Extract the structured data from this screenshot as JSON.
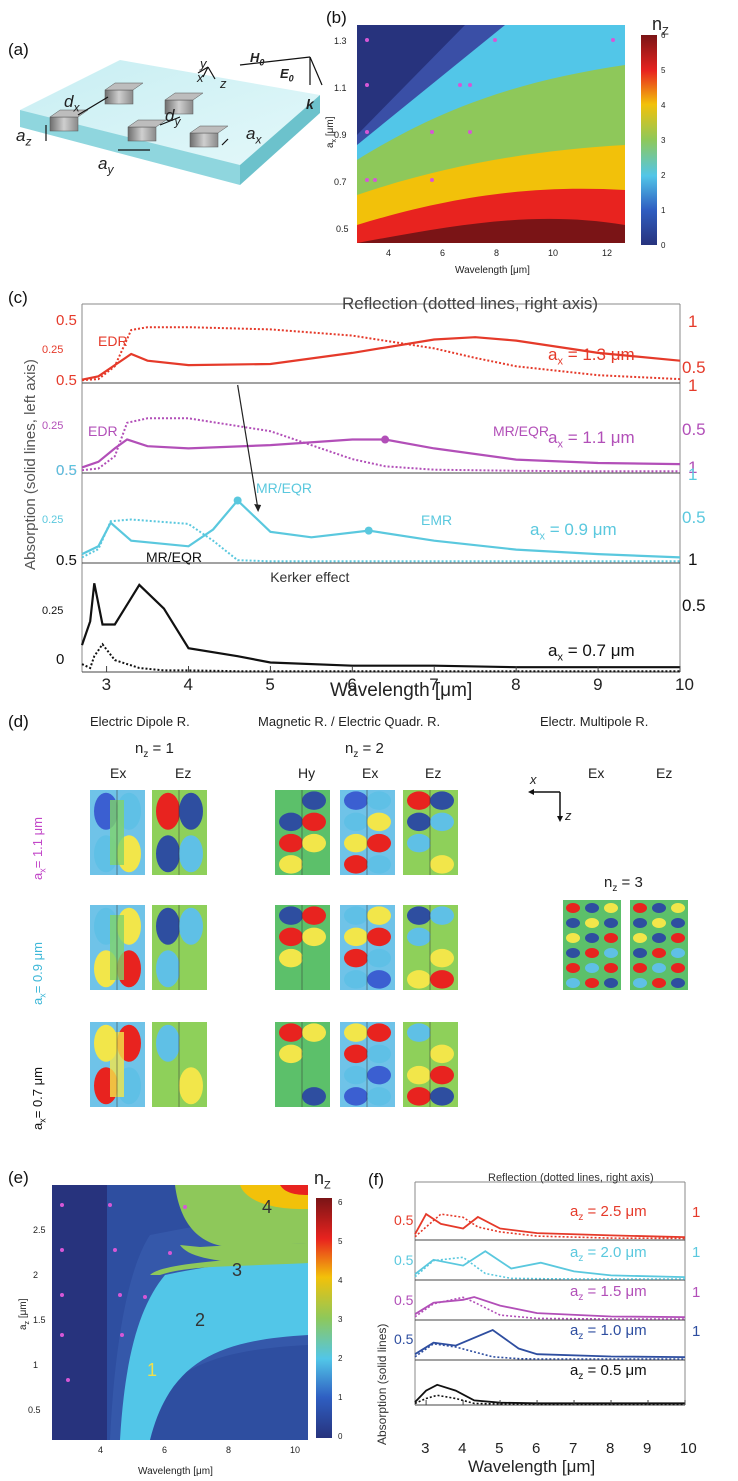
{
  "panels": {
    "a": "(a)",
    "b": "(b)",
    "c": "(c)",
    "d": "(d)",
    "e": "(e)",
    "f": "(f)"
  },
  "schematic": {
    "labels": {
      "y": "y",
      "x": "x",
      "z": "z",
      "H0": "H",
      "H0_sub": "0",
      "E0": "E",
      "E0_sub": "0",
      "k": "k",
      "dx": "d",
      "dx_sub": "x",
      "dy": "d",
      "dy_sub": "y",
      "az": "a",
      "az_sub": "z",
      "ay": "a",
      "ay_sub": "y",
      "ax": "a",
      "ax_sub": "x"
    }
  },
  "map_b": {
    "colorbar_title": "n",
    "colorbar_title_sub": "Z",
    "colorbar_ticks": [
      "0",
      "1",
      "2",
      "3",
      "4",
      "5",
      "6"
    ],
    "xlabel": "Wavelength [μm]",
    "ylabel": "a",
    "ylabel_sub": "x",
    "ylabel_unit": " [μm]",
    "xticks": [
      "4",
      "6",
      "8",
      "10",
      "12"
    ],
    "yticks": [
      "0.5",
      "0.7",
      "0.9",
      "1.1",
      "1.3"
    ],
    "colors": {
      "n0": "#27337d",
      "n1": "#3a4fa6",
      "n2": "#52c6e8",
      "n3": "#8ec85a",
      "n4": "#f2c10a",
      "n5": "#e8231f",
      "n6": "#7a1416"
    }
  },
  "chart_data": [
    {
      "type": "line",
      "panel": "c",
      "title": "Reflection (dotted lines, right axis)",
      "xlabel": "Wavelength [μm]",
      "ylabel": "Absorption (solid lines, left axis)",
      "xlim": [
        2.7,
        10
      ],
      "xticks": [
        "3",
        "4",
        "5",
        "6",
        "7",
        "8",
        "9",
        "10"
      ],
      "series": [
        {
          "name": "a_x = 1.3 μm",
          "color": "#e53a2a",
          "left_ticks": [
            "0.5",
            "0.25",
            "0.5"
          ],
          "right_ticks": [
            "1",
            "0.5",
            "1"
          ],
          "x": [
            2.7,
            2.9,
            3.1,
            3.3,
            3.5,
            4,
            5,
            6,
            7,
            7.5,
            8,
            9,
            10
          ],
          "absorption": [
            0.03,
            0.06,
            0.16,
            0.26,
            0.2,
            0.16,
            0.17,
            0.27,
            0.39,
            0.41,
            0.38,
            0.27,
            0.2
          ],
          "reflection": [
            0.05,
            0.07,
            0.3,
            0.95,
            1.0,
            1.0,
            0.96,
            0.85,
            0.62,
            0.45,
            0.3,
            0.14,
            0.07
          ],
          "labels": [
            {
              "text": "EDR",
              "x": 3.2
            }
          ]
        },
        {
          "name": "a_x = 1.1 μm",
          "color": "#b24fb8",
          "left_ticks": [
            "0.25",
            "0.5"
          ],
          "right_ticks": [
            "0.5",
            "1"
          ],
          "x": [
            2.7,
            2.9,
            3.1,
            3.25,
            3.5,
            4,
            5,
            6,
            6.4,
            7,
            8,
            9,
            10
          ],
          "absorption": [
            0.05,
            0.1,
            0.22,
            0.3,
            0.24,
            0.22,
            0.25,
            0.3,
            0.3,
            0.22,
            0.12,
            0.09,
            0.08
          ],
          "reflection": [
            0.05,
            0.08,
            0.3,
            0.9,
            0.98,
            0.98,
            0.75,
            0.25,
            0.12,
            0.06,
            0.04,
            0.03,
            0.03
          ],
          "labels": [
            {
              "text": "EDR",
              "x": 3.2
            },
            {
              "text": "MR/EQR",
              "x": 6.4
            }
          ]
        },
        {
          "name": "a_x = 0.9 μm",
          "color": "#5ac8de",
          "left_ticks": [
            "0.5",
            "0.25"
          ],
          "right_ticks": [
            "1",
            "0.5"
          ],
          "x": [
            2.7,
            2.9,
            3.05,
            3.3,
            4,
            4.3,
            4.6,
            5,
            5.5,
            6.2,
            7,
            8,
            9,
            10
          ],
          "absorption": [
            0.08,
            0.15,
            0.36,
            0.2,
            0.15,
            0.3,
            0.56,
            0.28,
            0.23,
            0.29,
            0.2,
            0.12,
            0.08,
            0.05
          ],
          "reflection": [
            0.1,
            0.25,
            0.75,
            0.78,
            0.7,
            0.4,
            0.05,
            0.03,
            0.03,
            0.03,
            0.03,
            0.03,
            0.03,
            0.03
          ],
          "labels": [
            {
              "text": "MR/EQR",
              "x": 4.6
            },
            {
              "text": "EMR",
              "x": 6.2
            },
            {
              "text": "Kerker effect",
              "x": 4.9
            }
          ]
        },
        {
          "name": "a_x = 0.7 μm",
          "color": "#111111",
          "left_ticks": [
            "0.5",
            "0.25",
            "0"
          ],
          "right_ticks": [
            "1",
            "0.5"
          ],
          "x": [
            2.7,
            2.8,
            2.85,
            2.95,
            3.1,
            3.4,
            3.7,
            4,
            4.6,
            5,
            6,
            7,
            8,
            9,
            10
          ],
          "absorption": [
            0.17,
            0.32,
            0.56,
            0.3,
            0.3,
            0.55,
            0.4,
            0.15,
            0.1,
            0.06,
            0.04,
            0.04,
            0.03,
            0.03,
            0.03
          ],
          "reflection": [
            0.1,
            0.05,
            0.2,
            0.35,
            0.15,
            0.05,
            0.02,
            0.02,
            0.01,
            0.01,
            0.01,
            0.01,
            0.01,
            0.01,
            0.01
          ],
          "labels": [
            {
              "text": "MR/EQR",
              "x": 3.5
            }
          ]
        }
      ]
    },
    {
      "type": "line",
      "panel": "f",
      "title": "Reflection (dotted lines, right axis)",
      "xlabel": "Wavelength [μm]",
      "ylabel": "Absorption (solid lines)",
      "xlim": [
        2.7,
        10
      ],
      "xticks": [
        "3",
        "4",
        "5",
        "6",
        "7",
        "8",
        "9",
        "10"
      ],
      "series": [
        {
          "name": "a_z = 2.5 μm",
          "color": "#e53a2a",
          "left_tick": "0.5",
          "right_tick": "1",
          "x": [
            2.7,
            3,
            3.4,
            4,
            4.4,
            5,
            6,
            8,
            10
          ],
          "absorption": [
            0.1,
            0.45,
            0.28,
            0.2,
            0.4,
            0.2,
            0.12,
            0.08,
            0.05
          ],
          "reflection": [
            0.1,
            0.4,
            0.8,
            0.7,
            0.4,
            0.25,
            0.12,
            0.06,
            0.05
          ]
        },
        {
          "name": "a_z = 2.0 μm",
          "color": "#5ac8de",
          "left_tick": "0.5",
          "right_tick": "1",
          "x": [
            2.7,
            3.2,
            4,
            4.6,
            5.3,
            6.1,
            7,
            8,
            10
          ],
          "absorption": [
            0.1,
            0.35,
            0.25,
            0.5,
            0.2,
            0.3,
            0.15,
            0.08,
            0.05
          ],
          "reflection": [
            0.1,
            0.6,
            0.7,
            0.2,
            0.05,
            0.04,
            0.03,
            0.03,
            0.03
          ]
        },
        {
          "name": "a_z = 1.5 μm",
          "color": "#b24fb8",
          "left_tick": "0.5",
          "right_tick": "1",
          "x": [
            2.7,
            3.2,
            4,
            4.3,
            5,
            6,
            8,
            10
          ],
          "absorption": [
            0.1,
            0.3,
            0.35,
            0.4,
            0.25,
            0.12,
            0.06,
            0.05
          ],
          "reflection": [
            0.1,
            0.5,
            0.7,
            0.55,
            0.15,
            0.05,
            0.03,
            0.03
          ]
        },
        {
          "name": "a_z = 1.0 μm",
          "color": "#2e4ea0",
          "left_tick": "0.5",
          "right_tick": "1",
          "x": [
            2.7,
            3.2,
            3.8,
            4.8,
            5.5,
            6,
            8,
            10
          ],
          "absorption": [
            0.1,
            0.3,
            0.25,
            0.52,
            0.2,
            0.1,
            0.06,
            0.05
          ],
          "reflection": [
            0.1,
            0.5,
            0.4,
            0.1,
            0.04,
            0.03,
            0.03,
            0.03
          ]
        },
        {
          "name": "a_z = 0.5 μm",
          "color": "#111111",
          "left_tick": "",
          "right_tick": "",
          "x": [
            2.7,
            3,
            3.3,
            3.8,
            4.3,
            5,
            6,
            8,
            10
          ],
          "absorption": [
            0.05,
            0.25,
            0.35,
            0.25,
            0.08,
            0.04,
            0.03,
            0.03,
            0.03
          ],
          "reflection": [
            0.05,
            0.2,
            0.3,
            0.2,
            0.05,
            0.03,
            0.02,
            0.02,
            0.02
          ]
        }
      ]
    }
  ],
  "fields_d": {
    "groups": [
      {
        "title": "Electric Dipole R.",
        "n": "n",
        "n_sub": "z",
        "n_val": " = 1",
        "cols": [
          "Ex",
          "Ez"
        ]
      },
      {
        "title": "Magnetic R. / Electric Quadr. R.",
        "n": "n",
        "n_sub": "z",
        "n_val": " = 2",
        "cols": [
          "Hy",
          "Ex",
          "Ez"
        ]
      },
      {
        "title": "Electr. Multipole R.",
        "n": "n",
        "n_sub": "z",
        "n_val": " = 3",
        "cols": [
          "Ex",
          "Ez"
        ]
      }
    ],
    "rows": [
      {
        "label": "a",
        "sub": "x",
        "val": "= 1.1 μm",
        "color": "#c247c8"
      },
      {
        "label": "a",
        "sub": "x",
        "val": "= 0.9 μm",
        "color": "#3fb8d8"
      },
      {
        "label": "a",
        "sub": "x",
        "val": "= 0.7 μm",
        "color": "#111111"
      }
    ],
    "axes": {
      "x": "x",
      "z": "z"
    }
  },
  "map_e": {
    "colorbar_title": "n",
    "colorbar_title_sub": "Z",
    "colorbar_ticks": [
      "0",
      "1",
      "2",
      "3",
      "4",
      "5",
      "6"
    ],
    "xlabel": "Wavelength [μm]",
    "ylabel": "a",
    "ylabel_sub": "z",
    "ylabel_unit": " [μm]",
    "xticks": [
      "4",
      "6",
      "8",
      "10"
    ],
    "yticks": [
      "0.5",
      "1",
      "1.5",
      "2",
      "2.5"
    ],
    "region_labels": [
      "1",
      "2",
      "3",
      "4"
    ]
  }
}
